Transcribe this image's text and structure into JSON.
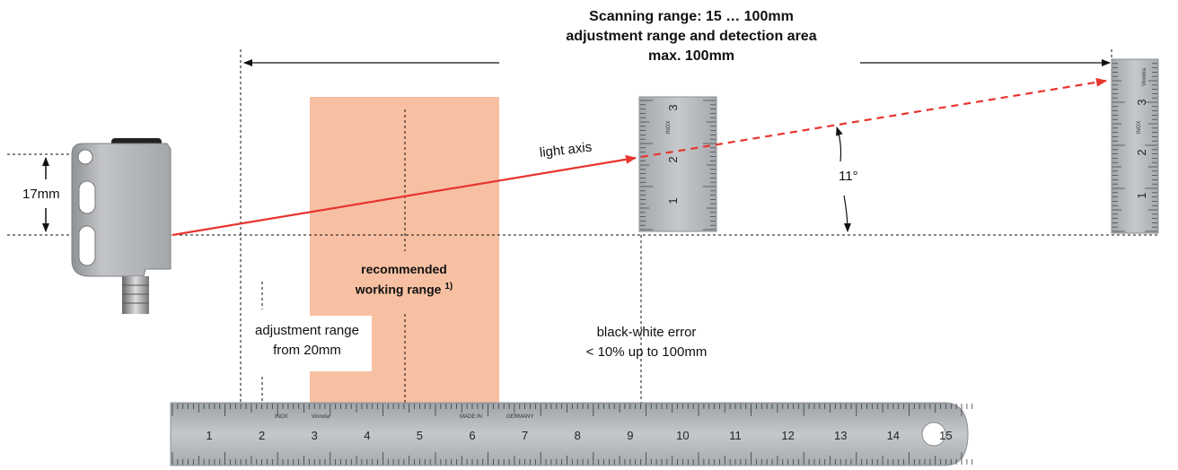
{
  "heading": {
    "line1": "Scanning range: 15 … 100mm",
    "line2": "adjustment range and detection area",
    "line3": "max. 100mm"
  },
  "labels": {
    "light_axis": "light axis",
    "dimension": "17mm",
    "angle": "11°",
    "recommended_line1": "recommended",
    "recommended_line2": "working range ",
    "recommended_footnote": "1)",
    "adjustment_line1": "adjustment range",
    "adjustment_line2": "from 20mm",
    "bw_line1": "black-white error",
    "bw_line2": "< 10% up to 100mm"
  },
  "ruler": {
    "numbers": [
      "1",
      "2",
      "3",
      "4",
      "5",
      "6",
      "7",
      "8",
      "9",
      "10",
      "11",
      "12",
      "13",
      "14",
      "15"
    ],
    "imprint_left": "INOX",
    "imprint_brand": "Vinnola",
    "imprint_made": "MADE IN",
    "imprint_country": "GERMANY"
  },
  "scale_near": {
    "numbers": [
      "1",
      "2",
      "3"
    ],
    "imprint": "INOX"
  },
  "scale_far": {
    "numbers": [
      "1",
      "2",
      "3"
    ],
    "imprint": "INOX",
    "brand": "Vinnola"
  },
  "colors": {
    "laser": "#e8352f",
    "working_range": "#f7c0a2",
    "ruler_steel": "#b8bcc0",
    "sensor_body": "#b3b3b3"
  }
}
